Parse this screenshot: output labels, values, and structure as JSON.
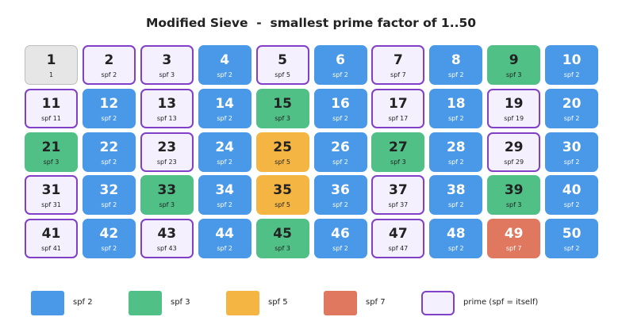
{
  "title": "Modified Sieve  -  smallest prime factor of 1..50",
  "colors": {
    "spf2": "#4a98e8",
    "spf3": "#50c087",
    "spf5": "#f4b543",
    "spf7": "#e07860",
    "prime_bg": "#f4f0fe",
    "prime_border": "#8040c8",
    "one_bg": "#e6e6e6",
    "light_text": "#ffffff",
    "dark_text": "#222222"
  },
  "cells": [
    {
      "n": "1",
      "label": "1",
      "kind": "one"
    },
    {
      "n": "2",
      "label": "spf 2",
      "kind": "prime"
    },
    {
      "n": "3",
      "label": "spf 3",
      "kind": "prime"
    },
    {
      "n": "4",
      "label": "spf 2",
      "kind": "spf2"
    },
    {
      "n": "5",
      "label": "spf 5",
      "kind": "prime"
    },
    {
      "n": "6",
      "label": "spf 2",
      "kind": "spf2"
    },
    {
      "n": "7",
      "label": "spf 7",
      "kind": "prime"
    },
    {
      "n": "8",
      "label": "spf 2",
      "kind": "spf2"
    },
    {
      "n": "9",
      "label": "spf 3",
      "kind": "spf3"
    },
    {
      "n": "10",
      "label": "spf 2",
      "kind": "spf2"
    },
    {
      "n": "11",
      "label": "spf 11",
      "kind": "prime"
    },
    {
      "n": "12",
      "label": "spf 2",
      "kind": "spf2"
    },
    {
      "n": "13",
      "label": "spf 13",
      "kind": "prime"
    },
    {
      "n": "14",
      "label": "spf 2",
      "kind": "spf2"
    },
    {
      "n": "15",
      "label": "spf 3",
      "kind": "spf3"
    },
    {
      "n": "16",
      "label": "spf 2",
      "kind": "spf2"
    },
    {
      "n": "17",
      "label": "spf 17",
      "kind": "prime"
    },
    {
      "n": "18",
      "label": "spf 2",
      "kind": "spf2"
    },
    {
      "n": "19",
      "label": "spf 19",
      "kind": "prime"
    },
    {
      "n": "20",
      "label": "spf 2",
      "kind": "spf2"
    },
    {
      "n": "21",
      "label": "spf 3",
      "kind": "spf3"
    },
    {
      "n": "22",
      "label": "spf 2",
      "kind": "spf2"
    },
    {
      "n": "23",
      "label": "spf 23",
      "kind": "prime"
    },
    {
      "n": "24",
      "label": "spf 2",
      "kind": "spf2"
    },
    {
      "n": "25",
      "label": "spf 5",
      "kind": "spf5"
    },
    {
      "n": "26",
      "label": "spf 2",
      "kind": "spf2"
    },
    {
      "n": "27",
      "label": "spf 3",
      "kind": "spf3"
    },
    {
      "n": "28",
      "label": "spf 2",
      "kind": "spf2"
    },
    {
      "n": "29",
      "label": "spf 29",
      "kind": "prime"
    },
    {
      "n": "30",
      "label": "spf 2",
      "kind": "spf2"
    },
    {
      "n": "31",
      "label": "spf 31",
      "kind": "prime"
    },
    {
      "n": "32",
      "label": "spf 2",
      "kind": "spf2"
    },
    {
      "n": "33",
      "label": "spf 3",
      "kind": "spf3"
    },
    {
      "n": "34",
      "label": "spf 2",
      "kind": "spf2"
    },
    {
      "n": "35",
      "label": "spf 5",
      "kind": "spf5"
    },
    {
      "n": "36",
      "label": "spf 2",
      "kind": "spf2"
    },
    {
      "n": "37",
      "label": "spf 37",
      "kind": "prime"
    },
    {
      "n": "38",
      "label": "spf 2",
      "kind": "spf2"
    },
    {
      "n": "39",
      "label": "spf 3",
      "kind": "spf3"
    },
    {
      "n": "40",
      "label": "spf 2",
      "kind": "spf2"
    },
    {
      "n": "41",
      "label": "spf 41",
      "kind": "prime"
    },
    {
      "n": "42",
      "label": "spf 2",
      "kind": "spf2"
    },
    {
      "n": "43",
      "label": "spf 43",
      "kind": "prime"
    },
    {
      "n": "44",
      "label": "spf 2",
      "kind": "spf2"
    },
    {
      "n": "45",
      "label": "spf 3",
      "kind": "spf3"
    },
    {
      "n": "46",
      "label": "spf 2",
      "kind": "spf2"
    },
    {
      "n": "47",
      "label": "spf 47",
      "kind": "prime"
    },
    {
      "n": "48",
      "label": "spf 2",
      "kind": "spf2"
    },
    {
      "n": "49",
      "label": "spf 7",
      "kind": "spf7"
    },
    {
      "n": "50",
      "label": "spf 2",
      "kind": "spf2"
    }
  ],
  "legend": [
    {
      "label": "spf 2",
      "kind": "spf2"
    },
    {
      "label": "spf 3",
      "kind": "spf3"
    },
    {
      "label": "spf 5",
      "kind": "spf5"
    },
    {
      "label": "spf 7",
      "kind": "spf7"
    },
    {
      "label": "prime (spf = itself)",
      "kind": "prime"
    }
  ]
}
